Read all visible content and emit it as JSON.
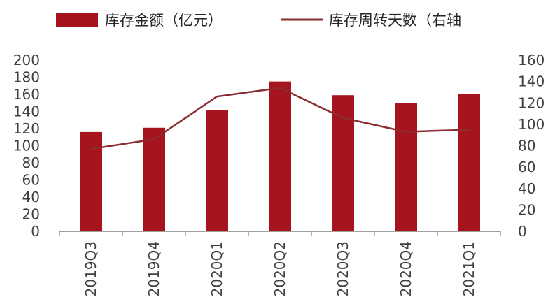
{
  "chart_data": {
    "type": "bar+line",
    "categories": [
      "2019Q3",
      "2019Q4",
      "2020Q1",
      "2020Q2",
      "2020Q3",
      "2020Q4",
      "2021Q1"
    ],
    "series": [
      {
        "name": "库存金额（亿元）",
        "type": "bar",
        "axis": "left",
        "color": "#a6151d",
        "values": [
          116,
          121,
          142,
          175,
          159,
          150,
          160
        ]
      },
      {
        "name": "库存周转天数（右轴",
        "type": "line",
        "axis": "right",
        "color": "#8b2d30",
        "values": [
          77,
          86,
          126,
          134,
          106,
          93,
          95
        ]
      }
    ],
    "left_axis": {
      "ylim": [
        0,
        200
      ],
      "ticks": [
        "0",
        "20",
        "40",
        "60",
        "80",
        "100",
        "120",
        "140",
        "160",
        "180",
        "200"
      ]
    },
    "right_axis": {
      "ylim": [
        0,
        160
      ],
      "ticks": [
        "0",
        "20",
        "40",
        "60",
        "80",
        "100",
        "120",
        "140",
        "160"
      ]
    },
    "legend_position": "top",
    "grid": false
  }
}
